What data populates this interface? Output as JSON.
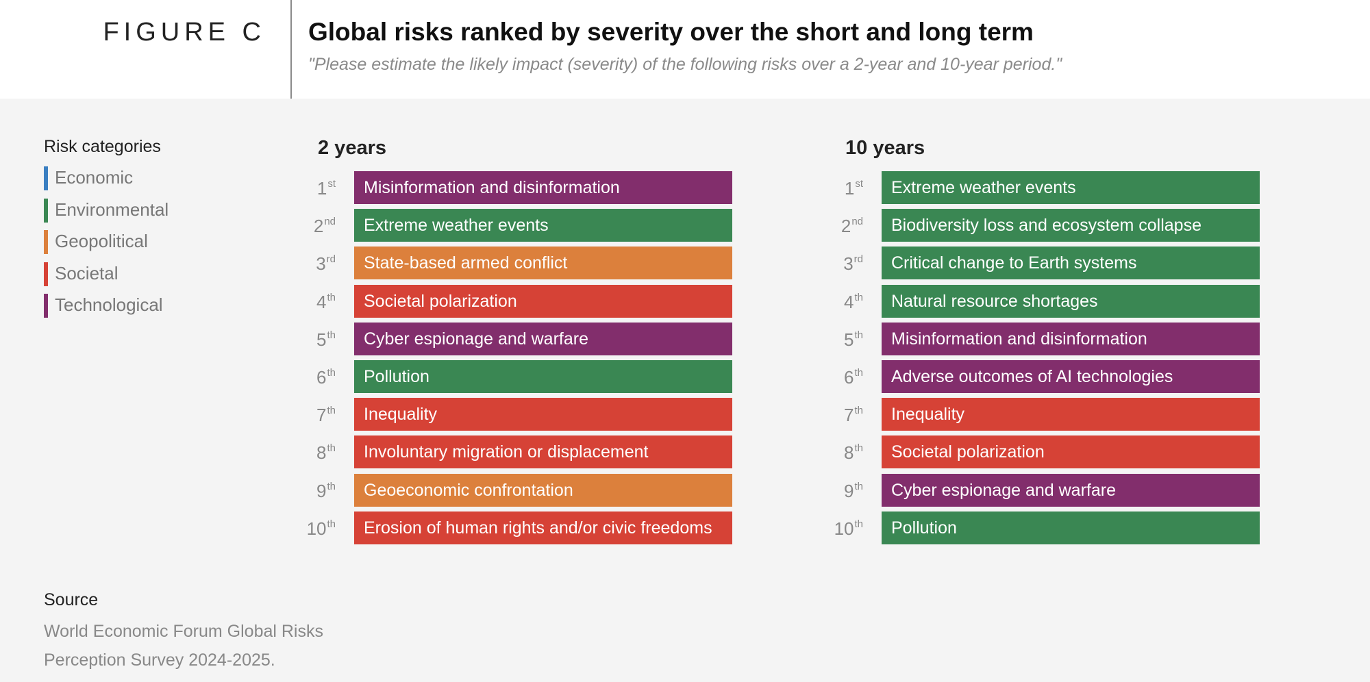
{
  "header": {
    "figure_label": "FIGURE C",
    "title": "Global risks ranked by severity over the short and long term",
    "subtitle": "\"Please estimate the likely impact (severity) of the following risks over a 2-year and 10-year period.\""
  },
  "legend": {
    "title": "Risk categories",
    "items": [
      {
        "label": "Economic",
        "color": "#3a7fc1"
      },
      {
        "label": "Environmental",
        "color": "#3a8753"
      },
      {
        "label": "Geopolitical",
        "color": "#dc803c"
      },
      {
        "label": "Societal",
        "color": "#d64236"
      },
      {
        "label": "Technological",
        "color": "#822e6c"
      }
    ]
  },
  "colors": {
    "Economic": "#3a7fc1",
    "Environmental": "#3a8753",
    "Geopolitical": "#dc803c",
    "Societal": "#d64236",
    "Technological": "#822e6c"
  },
  "chart_data": [
    {
      "type": "table",
      "title": "2 years",
      "ranks": [
        {
          "n": "1",
          "suffix": "st",
          "risk": "Misinformation and disinformation",
          "category": "Technological"
        },
        {
          "n": "2",
          "suffix": "nd",
          "risk": "Extreme weather events",
          "category": "Environmental"
        },
        {
          "n": "3",
          "suffix": "rd",
          "risk": "State-based armed conflict",
          "category": "Geopolitical"
        },
        {
          "n": "4",
          "suffix": "th",
          "risk": "Societal polarization",
          "category": "Societal"
        },
        {
          "n": "5",
          "suffix": "th",
          "risk": "Cyber espionage and warfare",
          "category": "Technological"
        },
        {
          "n": "6",
          "suffix": "th",
          "risk": "Pollution",
          "category": "Environmental"
        },
        {
          "n": "7",
          "suffix": "th",
          "risk": "Inequality",
          "category": "Societal"
        },
        {
          "n": "8",
          "suffix": "th",
          "risk": "Involuntary migration or displacement",
          "category": "Societal"
        },
        {
          "n": "9",
          "suffix": "th",
          "risk": "Geoeconomic confrontation",
          "category": "Geopolitical"
        },
        {
          "n": "10",
          "suffix": "th",
          "risk": "Erosion of human rights and/or civic freedoms",
          "category": "Societal"
        }
      ]
    },
    {
      "type": "table",
      "title": "10 years",
      "ranks": [
        {
          "n": "1",
          "suffix": "st",
          "risk": "Extreme weather events",
          "category": "Environmental"
        },
        {
          "n": "2",
          "suffix": "nd",
          "risk": "Biodiversity loss and ecosystem collapse",
          "category": "Environmental"
        },
        {
          "n": "3",
          "suffix": "rd",
          "risk": "Critical change to Earth systems",
          "category": "Environmental"
        },
        {
          "n": "4",
          "suffix": "th",
          "risk": "Natural resource shortages",
          "category": "Environmental"
        },
        {
          "n": "5",
          "suffix": "th",
          "risk": "Misinformation and disinformation",
          "category": "Technological"
        },
        {
          "n": "6",
          "suffix": "th",
          "risk": "Adverse outcomes of AI technologies",
          "category": "Technological"
        },
        {
          "n": "7",
          "suffix": "th",
          "risk": "Inequality",
          "category": "Societal"
        },
        {
          "n": "8",
          "suffix": "th",
          "risk": "Societal polarization",
          "category": "Societal"
        },
        {
          "n": "9",
          "suffix": "th",
          "risk": "Cyber espionage and warfare",
          "category": "Technological"
        },
        {
          "n": "10",
          "suffix": "th",
          "risk": "Pollution",
          "category": "Environmental"
        }
      ]
    }
  ],
  "source": {
    "title": "Source",
    "lines": [
      "World Economic Forum Global Risks",
      "Perception Survey 2024-2025."
    ]
  }
}
